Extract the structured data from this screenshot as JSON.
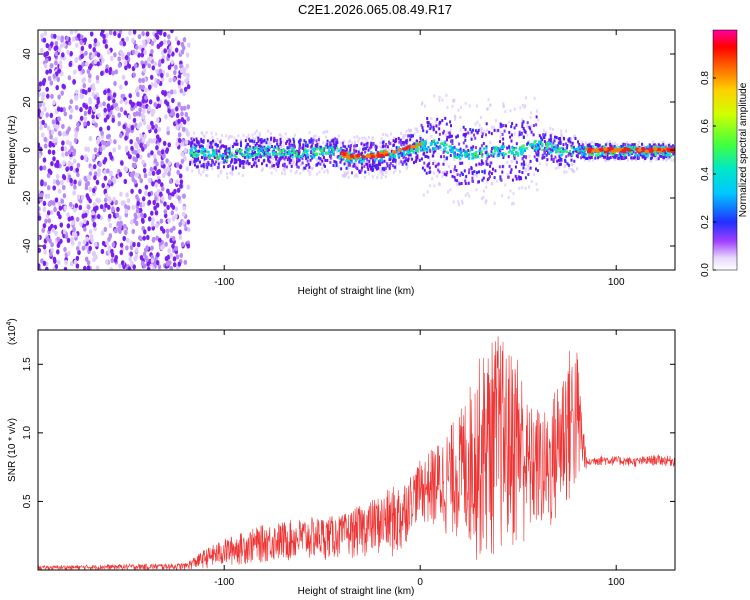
{
  "title": "C2E1.2026.065.08.49.R17",
  "chart_data": [
    {
      "type": "heatmap",
      "xlabel": "Height of straight line (km)",
      "ylabel": "Frequency (Hz)",
      "xlim": [
        -195,
        130
      ],
      "ylim": [
        -50,
        50
      ],
      "x_ticks": [
        -100,
        0,
        100
      ],
      "x_tick_labels": [
        "-100",
        "",
        "100"
      ],
      "y_ticks": [
        -40,
        -20,
        0,
        20,
        40
      ],
      "y_tick_labels": [
        "-40",
        "-20",
        "0",
        "20",
        "40"
      ],
      "colorbar": {
        "label": "Normalized spectral amplitude",
        "range": [
          0,
          1
        ],
        "ticks": [
          0.0,
          0.2,
          0.4,
          0.6,
          0.8
        ],
        "tick_labels": [
          "0.0",
          "0.2",
          "0.4",
          "0.6",
          "0.8"
        ]
      },
      "band_center_frequency_hz": [
        [
          -120,
          0
        ],
        [
          -100,
          -2
        ],
        [
          -80,
          0
        ],
        [
          -60,
          -1
        ],
        [
          -45,
          0
        ],
        [
          -35,
          -3
        ],
        [
          -20,
          -2
        ],
        [
          -10,
          0
        ],
        [
          0,
          2
        ],
        [
          10,
          3
        ],
        [
          20,
          -2
        ],
        [
          35,
          0
        ],
        [
          50,
          0
        ],
        [
          60,
          3
        ],
        [
          70,
          0
        ],
        [
          80,
          0
        ],
        [
          100,
          0
        ],
        [
          130,
          0
        ]
      ],
      "noise_region_x_range": [
        -195,
        -118
      ]
    },
    {
      "type": "line",
      "xlabel": "Height of straight line (km)",
      "ylabel": "SNR (10 * v/v)",
      "y_multiplier_label": "(x10",
      "y_multiplier_exp": "4",
      "xlim": [
        -195,
        130
      ],
      "ylim": [
        0,
        17500
      ],
      "x_ticks": [
        -100,
        0,
        100
      ],
      "x_tick_labels": [
        "-100",
        "0",
        "100"
      ],
      "y_ticks": [
        5000,
        10000,
        15000
      ],
      "y_tick_labels": [
        "0.5",
        "1.0",
        "1.5"
      ],
      "series": [
        {
          "color": "#ee3333",
          "envelope_x": [
            -195,
            -120,
            -110,
            -100,
            -80,
            -60,
            -40,
            -20,
            -10,
            -5,
            0,
            10,
            20,
            30,
            35,
            40,
            45,
            50,
            55,
            60,
            65,
            70,
            75,
            80,
            85,
            90,
            100,
            110,
            120,
            130
          ],
          "envelope_max": [
            300,
            500,
            1500,
            2300,
            3300,
            3800,
            4000,
            5500,
            6500,
            7000,
            8000,
            9500,
            11500,
            15500,
            16500,
            17500,
            16000,
            16500,
            12000,
            12000,
            11500,
            14000,
            16200,
            16500,
            8000,
            8400,
            8300,
            8200,
            8400,
            8300
          ],
          "envelope_min": [
            0,
            0,
            100,
            200,
            500,
            600,
            800,
            1000,
            500,
            3000,
            3500,
            2500,
            2000,
            300,
            500,
            800,
            1000,
            1000,
            2000,
            2500,
            2000,
            3000,
            4000,
            5000,
            7500,
            7600,
            7600,
            7500,
            7600,
            7500
          ]
        }
      ]
    }
  ]
}
